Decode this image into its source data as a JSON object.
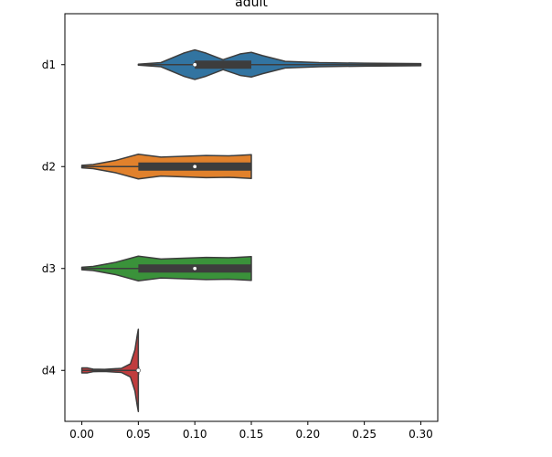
{
  "chart_data": {
    "type": "violin",
    "title": "adult",
    "xlabel": "",
    "ylabel": "",
    "orientation": "horizontal",
    "xlim": [
      -0.015,
      0.315
    ],
    "x_ticks": [
      0.0,
      0.05,
      0.1,
      0.15,
      0.2,
      0.25,
      0.3
    ],
    "x_tick_labels": [
      "0.00",
      "0.05",
      "0.10",
      "0.15",
      "0.20",
      "0.25",
      "0.30"
    ],
    "categories": [
      "d1",
      "d2",
      "d3",
      "d4"
    ],
    "grid": false,
    "legend": "none",
    "series": [
      {
        "category": "d1",
        "color": "#3274a1",
        "range": [
          0.05,
          0.3
        ],
        "iqr": [
          0.1,
          0.15
        ],
        "median": 0.1,
        "density": [
          [
            0.05,
            0.012
          ],
          [
            0.07,
            0.05
          ],
          [
            0.09,
            0.28
          ],
          [
            0.1,
            0.36
          ],
          [
            0.11,
            0.28
          ],
          [
            0.125,
            0.12
          ],
          [
            0.14,
            0.26
          ],
          [
            0.15,
            0.3
          ],
          [
            0.16,
            0.22
          ],
          [
            0.18,
            0.08
          ],
          [
            0.21,
            0.05
          ],
          [
            0.25,
            0.035
          ],
          [
            0.3,
            0.025
          ]
        ]
      },
      {
        "category": "d2",
        "color": "#e1812c",
        "range": [
          0.0,
          0.15
        ],
        "iqr": [
          0.05,
          0.15
        ],
        "median": 0.1,
        "density": [
          [
            0.0,
            0.03
          ],
          [
            0.01,
            0.05
          ],
          [
            0.03,
            0.15
          ],
          [
            0.05,
            0.3
          ],
          [
            0.07,
            0.23
          ],
          [
            0.09,
            0.25
          ],
          [
            0.11,
            0.27
          ],
          [
            0.13,
            0.26
          ],
          [
            0.15,
            0.29
          ]
        ]
      },
      {
        "category": "d3",
        "color": "#3a923a",
        "range": [
          0.0,
          0.15
        ],
        "iqr": [
          0.05,
          0.15
        ],
        "median": 0.1,
        "density": [
          [
            0.0,
            0.03
          ],
          [
            0.01,
            0.05
          ],
          [
            0.03,
            0.15
          ],
          [
            0.05,
            0.3
          ],
          [
            0.07,
            0.23
          ],
          [
            0.09,
            0.25
          ],
          [
            0.11,
            0.27
          ],
          [
            0.13,
            0.26
          ],
          [
            0.15,
            0.29
          ]
        ]
      },
      {
        "category": "d4",
        "color": "#c03d3e",
        "range": [
          0.0,
          0.05
        ],
        "iqr": [
          0.05,
          0.05
        ],
        "median": 0.05,
        "density": [
          [
            0.0,
            0.06
          ],
          [
            0.005,
            0.06
          ],
          [
            0.01,
            0.03
          ],
          [
            0.02,
            0.025
          ],
          [
            0.035,
            0.05
          ],
          [
            0.043,
            0.16
          ],
          [
            0.047,
            0.5
          ],
          [
            0.049,
            0.85
          ],
          [
            0.05,
            1.0
          ]
        ]
      }
    ]
  }
}
